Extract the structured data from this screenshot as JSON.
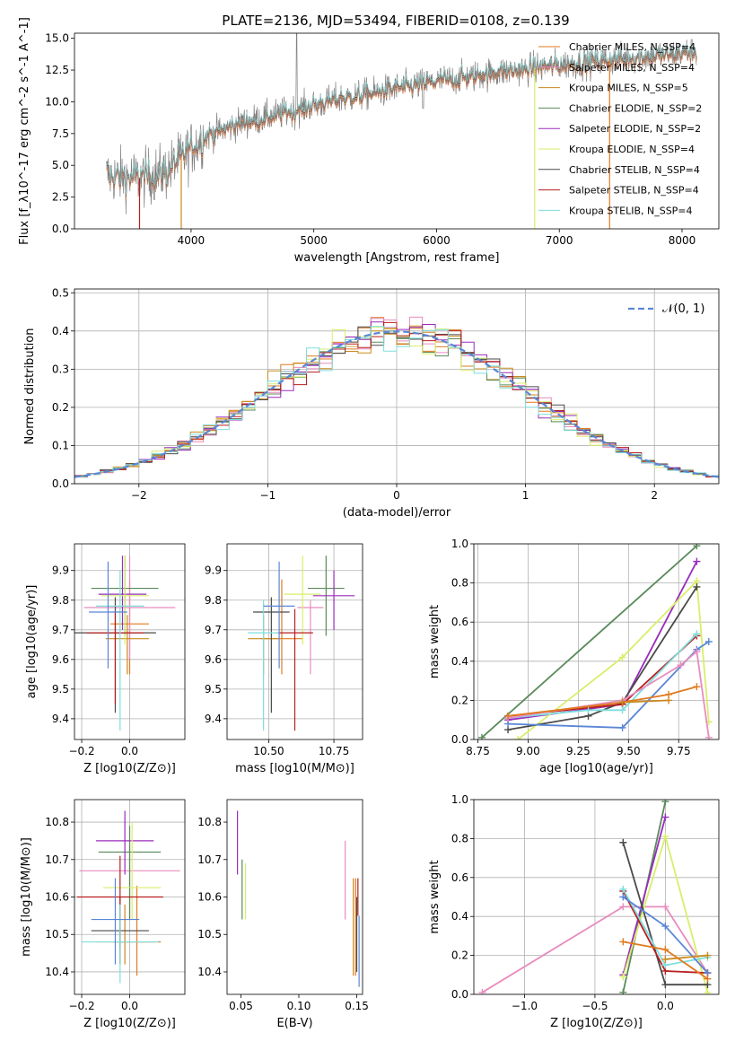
{
  "figure": {
    "title": "PLATE=2136, MJD=53494, FIBERID=0108, z=0.139"
  },
  "colors": {
    "chabrier_miles": "#e07a1f",
    "salpeter_miles": "#e88cbe",
    "kroupa_miles": "#c98a1e",
    "chabrier_elodie": "#5a8a5a",
    "salpeter_elodie": "#9a2bbd",
    "kroupa_elodie": "#d9ee6a",
    "chabrier_stelib": "#4a4a4a",
    "salpeter_stelib": "#b81f1f",
    "kroupa_stelib": "#7fdede",
    "data": "#808080",
    "blue": "#5a86d6"
  },
  "chart_data": [
    {
      "id": "spectrum",
      "type": "line",
      "xlabel": "wavelength [Angstrom, rest frame]",
      "ylabel": "Flux [f_λ10^-17 erg cm^-2 s^-1 A^-1]",
      "xlim": [
        3050,
        8300
      ],
      "ylim": [
        0,
        15.4
      ],
      "xticks": [
        4000,
        5000,
        6000,
        7000,
        8000
      ],
      "yticks": [
        0.0,
        2.5,
        5.0,
        7.5,
        10.0,
        12.5,
        15.0
      ],
      "legend_position": "top-right",
      "legend": [
        "Chabrier MILES, N_SSP=4",
        "Salpeter MILES, N_SSP=4",
        "Kroupa MILES, N_SSP=5",
        "Chabrier ELODIE, N_SSP=2",
        "Salpeter ELODIE, N_SSP=2",
        "Kroupa ELODIE, N_SSP=4",
        "Chabrier STELIB, N_SSP=4",
        "Salpeter STELIB, N_SSP=4",
        "Kroupa STELIB, N_SSP=4"
      ],
      "continuum": {
        "x": [
          3300,
          3600,
          3800,
          3950,
          4100,
          4400,
          4800,
          5200,
          5600,
          6000,
          6500,
          7000,
          7500,
          8100
        ],
        "y": [
          4.2,
          4.0,
          4.5,
          5.8,
          7.2,
          8.3,
          9.2,
          10.2,
          10.9,
          11.6,
          12.3,
          12.9,
          13.4,
          13.9
        ]
      }
    },
    {
      "id": "residuals",
      "type": "histogram",
      "xlabel": "(data-model)/error",
      "ylabel": "Normed distribution",
      "xlim": [
        -2.5,
        2.5
      ],
      "ylim": [
        0,
        0.51
      ],
      "xticks": [
        -2,
        -1,
        0,
        1,
        2
      ],
      "yticks": [
        0.0,
        0.1,
        0.2,
        0.3,
        0.4,
        0.5
      ],
      "grid": true,
      "legend": [
        "𝒩(0, 1)"
      ],
      "legend_position": "top-right",
      "bin_width": 0.1,
      "bin_start": -2.5,
      "gaussian": {
        "mean": 0,
        "sigma": 1
      }
    },
    {
      "id": "age_vs_z",
      "type": "errorbar",
      "xlabel": "Z [log10(Z/Z⊙)]",
      "ylabel": "age  [log10(age/yr)]",
      "xlim": [
        -0.23,
        0.23
      ],
      "ylim": [
        9.33,
        9.99
      ],
      "xticks": [
        -0.2,
        0.0
      ],
      "yticks": [
        9.4,
        9.5,
        9.6,
        9.7,
        9.8,
        9.9
      ],
      "grid": true,
      "points": [
        {
          "x": 0.0,
          "y": 9.72,
          "xe": 0.08,
          "yl": 9.55,
          "yh": 9.87,
          "c": "chabrier_miles"
        },
        {
          "x": 0.0,
          "y": 9.775,
          "xe": 0.19,
          "yl": 9.6,
          "yh": 9.95,
          "c": "salpeter_miles"
        },
        {
          "x": -0.01,
          "y": 9.67,
          "xe": 0.09,
          "yl": 9.55,
          "yh": 9.75,
          "c": "kroupa_miles"
        },
        {
          "x": -0.02,
          "y": 9.84,
          "xe": 0.14,
          "yl": 9.68,
          "yh": 9.95,
          "c": "chabrier_elodie"
        },
        {
          "x": -0.03,
          "y": 9.82,
          "xe": 0.1,
          "yl": 9.7,
          "yh": 9.95,
          "c": "salpeter_elodie"
        },
        {
          "x": -0.02,
          "y": 9.815,
          "xe": 0.1,
          "yl": 9.65,
          "yh": 9.95,
          "c": "kroupa_elodie"
        },
        {
          "x": -0.06,
          "y": 9.69,
          "xe": 0.17,
          "yl": 9.42,
          "yh": 9.81,
          "c": "chabrier_stelib"
        },
        {
          "x": -0.06,
          "y": 9.69,
          "xe": 0.12,
          "yl": 9.45,
          "yh": 9.76,
          "c": "salpeter_stelib"
        },
        {
          "x": -0.04,
          "y": 9.78,
          "xe": 0.1,
          "yl": 9.36,
          "yh": 9.9,
          "c": "kroupa_stelib"
        },
        {
          "x": -0.09,
          "y": 9.76,
          "xe": 0.08,
          "yl": 9.57,
          "yh": 9.93,
          "c": "blue"
        }
      ]
    },
    {
      "id": "age_vs_mass",
      "type": "errorbar",
      "xlabel": "mass [log10(M/M⊙)]",
      "ylabel": "",
      "xlim": [
        10.34,
        10.86
      ],
      "ylim": [
        9.33,
        9.99
      ],
      "xticks": [
        10.5,
        10.75
      ],
      "yticks": [
        9.4,
        9.5,
        9.6,
        9.7,
        9.8,
        9.9
      ],
      "grid": true,
      "points": [
        {
          "x": 10.55,
          "y": 9.67,
          "xe": 0.08,
          "yl": 9.55,
          "yh": 9.87,
          "c": "chabrier_miles"
        },
        {
          "x": 10.66,
          "y": 9.775,
          "xe": 0.05,
          "yl": 9.55,
          "yh": 9.8,
          "c": "salpeter_miles"
        },
        {
          "x": 10.48,
          "y": 9.67,
          "xe": 0.06,
          "yl": 9.55,
          "yh": 9.75,
          "c": "kroupa_miles"
        },
        {
          "x": 10.72,
          "y": 9.84,
          "xe": 0.07,
          "yl": 9.68,
          "yh": 9.95,
          "c": "chabrier_elodie"
        },
        {
          "x": 10.75,
          "y": 9.815,
          "xe": 0.08,
          "yl": 9.7,
          "yh": 9.9,
          "c": "salpeter_elodie"
        },
        {
          "x": 10.63,
          "y": 9.82,
          "xe": 0.07,
          "yl": 9.65,
          "yh": 9.95,
          "c": "kroupa_elodie"
        },
        {
          "x": 10.51,
          "y": 9.76,
          "xe": 0.07,
          "yl": 9.42,
          "yh": 9.81,
          "c": "chabrier_stelib"
        },
        {
          "x": 10.6,
          "y": 9.69,
          "xe": 0.07,
          "yl": 9.36,
          "yh": 9.77,
          "c": "salpeter_stelib"
        },
        {
          "x": 10.48,
          "y": 9.69,
          "xe": 0.06,
          "yl": 9.36,
          "yh": 9.8,
          "c": "kroupa_stelib"
        },
        {
          "x": 10.54,
          "y": 9.78,
          "xe": 0.06,
          "yl": 9.57,
          "yh": 9.93,
          "c": "blue"
        }
      ]
    },
    {
      "id": "weight_vs_age",
      "type": "line",
      "xlabel": "age  [log10(age/yr)]",
      "ylabel": "mass weight",
      "xlim": [
        8.73,
        9.95
      ],
      "ylim": [
        0,
        1.0
      ],
      "xticks": [
        8.75,
        9.0,
        9.25,
        9.5,
        9.75
      ],
      "yticks": [
        0.0,
        0.2,
        0.4,
        0.6,
        0.8,
        1.0
      ],
      "grid": true,
      "series": [
        {
          "c": "chabrier_elodie",
          "x": [
            8.77,
            9.84
          ],
          "y": [
            0.01,
            0.99
          ]
        },
        {
          "c": "salpeter_elodie",
          "x": [
            8.9,
            9.47,
            9.84
          ],
          "y": [
            0.1,
            0.18,
            0.91
          ]
        },
        {
          "c": "kroupa_elodie",
          "x": [
            8.95,
            9.47,
            9.84,
            9.9
          ],
          "y": [
            0.0,
            0.42,
            0.81,
            0.09
          ]
        },
        {
          "c": "chabrier_stelib",
          "x": [
            8.9,
            9.3,
            9.47,
            9.84
          ],
          "y": [
            0.05,
            0.12,
            0.19,
            0.78
          ]
        },
        {
          "c": "salpeter_stelib",
          "x": [
            8.9,
            9.47,
            9.84
          ],
          "y": [
            0.12,
            0.18,
            0.53
          ]
        },
        {
          "c": "kroupa_stelib",
          "x": [
            8.9,
            9.3,
            9.47,
            9.84
          ],
          "y": [
            0.11,
            0.15,
            0.15,
            0.54
          ]
        },
        {
          "c": "blue",
          "x": [
            8.9,
            9.47,
            9.84,
            9.9
          ],
          "y": [
            0.08,
            0.06,
            0.46,
            0.5
          ]
        },
        {
          "c": "salpeter_miles",
          "x": [
            8.9,
            9.47,
            9.76,
            9.84,
            9.9
          ],
          "y": [
            0.11,
            0.2,
            0.38,
            0.45,
            0.01
          ]
        },
        {
          "c": "chabrier_miles",
          "x": [
            8.9,
            9.47,
            9.7,
            9.84
          ],
          "y": [
            0.12,
            0.19,
            0.23,
            0.27
          ]
        },
        {
          "c": "kroupa_miles",
          "x": [
            9.47,
            9.7
          ],
          "y": [
            0.19,
            0.2
          ]
        }
      ]
    },
    {
      "id": "mass_vs_z",
      "type": "errorbar",
      "xlabel": "Z [log10(Z/Z⊙)]",
      "ylabel": "mass [log10(M/M⊙)]",
      "xlim": [
        -0.23,
        0.23
      ],
      "ylim": [
        10.34,
        10.86
      ],
      "xticks": [
        -0.2,
        0.0
      ],
      "yticks": [
        10.4,
        10.5,
        10.6,
        10.7,
        10.8
      ],
      "grid": true,
      "points": [
        {
          "x": 0.03,
          "y": 10.48,
          "xe": 0.1,
          "yl": 10.39,
          "yh": 10.63,
          "c": "chabrier_miles"
        },
        {
          "x": 0.0,
          "y": 10.67,
          "xe": 0.21,
          "yl": 10.54,
          "yh": 10.74,
          "c": "salpeter_miles"
        },
        {
          "x": -0.02,
          "y": 10.48,
          "xe": 0.12,
          "yl": 10.42,
          "yh": 10.58,
          "c": "kroupa_miles"
        },
        {
          "x": 0.0,
          "y": 10.72,
          "xe": 0.13,
          "yl": 10.54,
          "yh": 10.79,
          "c": "chabrier_elodie"
        },
        {
          "x": -0.02,
          "y": 10.75,
          "xe": 0.12,
          "yl": 10.66,
          "yh": 10.83,
          "c": "salpeter_elodie"
        },
        {
          "x": 0.01,
          "y": 10.625,
          "xe": 0.12,
          "yl": 10.54,
          "yh": 10.8,
          "c": "kroupa_elodie"
        },
        {
          "x": -0.04,
          "y": 10.51,
          "xe": 0.12,
          "yl": 10.46,
          "yh": 10.6,
          "c": "chabrier_stelib"
        },
        {
          "x": -0.04,
          "y": 10.6,
          "xe": 0.18,
          "yl": 10.42,
          "yh": 10.71,
          "c": "salpeter_stelib"
        },
        {
          "x": -0.04,
          "y": 10.48,
          "xe": 0.16,
          "yl": 10.37,
          "yh": 10.58,
          "c": "kroupa_stelib"
        },
        {
          "x": -0.06,
          "y": 10.54,
          "xe": 0.1,
          "yl": 10.42,
          "yh": 10.65,
          "c": "blue"
        }
      ]
    },
    {
      "id": "mass_vs_ebv",
      "type": "errorbar",
      "xlabel": "E(B-V)",
      "ylabel": "",
      "xlim": [
        0.038,
        0.155
      ],
      "ylim": [
        10.34,
        10.86
      ],
      "xticks": [
        0.05,
        0.1,
        0.15
      ],
      "yticks": [
        10.4,
        10.5,
        10.6,
        10.7,
        10.8
      ],
      "grid": false,
      "points": [
        {
          "x": 0.149,
          "y": 10.5,
          "xe": 0.0,
          "yl": 10.39,
          "yh": 10.65,
          "c": "chabrier_miles"
        },
        {
          "x": 0.14,
          "y": 10.64,
          "xe": 0.0,
          "yl": 10.54,
          "yh": 10.75,
          "c": "salpeter_miles"
        },
        {
          "x": 0.147,
          "y": 10.5,
          "xe": 0.0,
          "yl": 10.39,
          "yh": 10.65,
          "c": "kroupa_miles"
        },
        {
          "x": 0.051,
          "y": 10.63,
          "xe": 0.0,
          "yl": 10.54,
          "yh": 10.7,
          "c": "chabrier_elodie"
        },
        {
          "x": 0.047,
          "y": 10.75,
          "xe": 0.0,
          "yl": 10.66,
          "yh": 10.83,
          "c": "salpeter_elodie"
        },
        {
          "x": 0.054,
          "y": 10.62,
          "xe": 0.0,
          "yl": 10.54,
          "yh": 10.69,
          "c": "kroupa_elodie"
        },
        {
          "x": 0.15,
          "y": 10.5,
          "xe": 0.0,
          "yl": 10.4,
          "yh": 10.6,
          "c": "chabrier_stelib"
        },
        {
          "x": 0.151,
          "y": 10.6,
          "xe": 0.0,
          "yl": 10.55,
          "yh": 10.65,
          "c": "salpeter_stelib"
        },
        {
          "x": 0.152,
          "y": 10.45,
          "xe": 0.0,
          "yl": 10.36,
          "yh": 10.55,
          "c": "blue"
        }
      ]
    },
    {
      "id": "weight_vs_z",
      "type": "line",
      "xlabel": "Z [log10(Z/Z⊙)]",
      "ylabel": "mass weight",
      "xlim": [
        -1.36,
        0.38
      ],
      "ylim": [
        0,
        1.0
      ],
      "xticks": [
        -1.0,
        -0.5,
        0.0
      ],
      "yticks": [
        0.0,
        0.2,
        0.4,
        0.6,
        0.8,
        1.0
      ],
      "grid": true,
      "series": [
        {
          "c": "salpeter_miles",
          "x": [
            -1.3,
            -0.3,
            0.0,
            0.3
          ],
          "y": [
            0.01,
            0.45,
            0.45,
            0.11
          ]
        },
        {
          "c": "chabrier_elodie",
          "x": [
            -0.3,
            0.0
          ],
          "y": [
            0.01,
            0.99
          ]
        },
        {
          "c": "salpeter_elodie",
          "x": [
            -0.3,
            0.0
          ],
          "y": [
            0.1,
            0.91
          ]
        },
        {
          "c": "kroupa_elodie",
          "x": [
            -0.3,
            0.0,
            0.3
          ],
          "y": [
            0.09,
            0.81,
            0.01
          ]
        },
        {
          "c": "chabrier_stelib",
          "x": [
            -0.3,
            0.0,
            0.3
          ],
          "y": [
            0.78,
            0.05,
            0.05
          ]
        },
        {
          "c": "salpeter_stelib",
          "x": [
            -0.3,
            0.0,
            0.3
          ],
          "y": [
            0.53,
            0.12,
            0.11
          ]
        },
        {
          "c": "kroupa_stelib",
          "x": [
            -0.3,
            0.0,
            0.3
          ],
          "y": [
            0.54,
            0.15,
            0.19
          ]
        },
        {
          "c": "blue",
          "x": [
            -0.3,
            0.0,
            0.3
          ],
          "y": [
            0.5,
            0.35,
            0.11
          ]
        },
        {
          "c": "chabrier_miles",
          "x": [
            -0.3,
            0.0,
            0.3
          ],
          "y": [
            0.27,
            0.23,
            0.08
          ]
        },
        {
          "c": "kroupa_miles",
          "x": [
            0.0,
            0.3
          ],
          "y": [
            0.18,
            0.2
          ]
        }
      ]
    }
  ]
}
